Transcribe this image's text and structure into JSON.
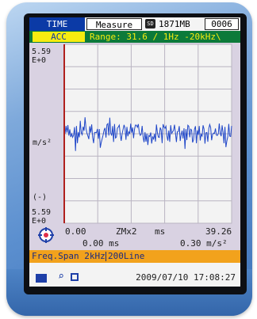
{
  "header": {
    "mode": "TIME",
    "view": "Measure",
    "sd_icon_label": "SD",
    "memory": "1871MB",
    "file_number": "0006"
  },
  "channel": {
    "type": "ACC",
    "range": "Range: 31.6 / 1Hz -20kHz\\"
  },
  "plot": {
    "y_top_value": "5.59",
    "y_top_exp": "E+0",
    "y_unit": "m/s²",
    "y_neg_sign": "(-)",
    "y_bottom_value": "5.59",
    "y_bottom_exp": "E+0",
    "x_start": "0.00",
    "x_zoom": "ZMx2",
    "x_unit": "ms",
    "x_end": "39.26",
    "cursor_time": "0.00 ms",
    "cursor_value": "0.30 m/s²",
    "trace_color": "#1f46c8",
    "grid_color": "#ffffff",
    "frame_color": "#b0201e"
  },
  "status": {
    "freq_span": "Freq.Span 2kHz",
    "lines": "200Line"
  },
  "footer": {
    "datetime": "2009/07/10 17:08:27",
    "icons": [
      "display-icon",
      "zoom-icon",
      "copy-icon"
    ]
  }
}
